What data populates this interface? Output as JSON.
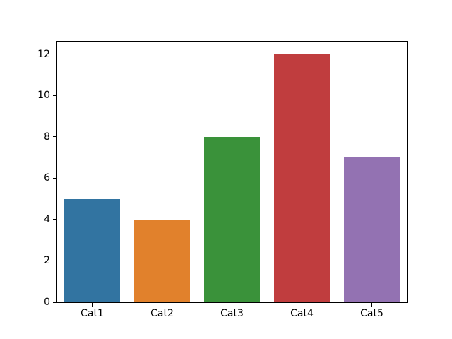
{
  "chart_data": {
    "type": "bar",
    "title": "",
    "xlabel": "",
    "ylabel": "",
    "categories": [
      "Cat1",
      "Cat2",
      "Cat3",
      "Cat4",
      "Cat5"
    ],
    "values": [
      5,
      4,
      8,
      12,
      7
    ],
    "bar_colors": [
      "#3274a1",
      "#e1812c",
      "#3a923a",
      "#c03d3e",
      "#9372b2"
    ],
    "yticks": [
      0,
      2,
      4,
      6,
      8,
      10,
      12
    ],
    "ylim": [
      0,
      12.6
    ],
    "bar_width_fraction": 0.8,
    "grid": false,
    "legend": false,
    "background_color": "#ffffff",
    "spine_color": "#000000",
    "text_color": "#000000"
  }
}
